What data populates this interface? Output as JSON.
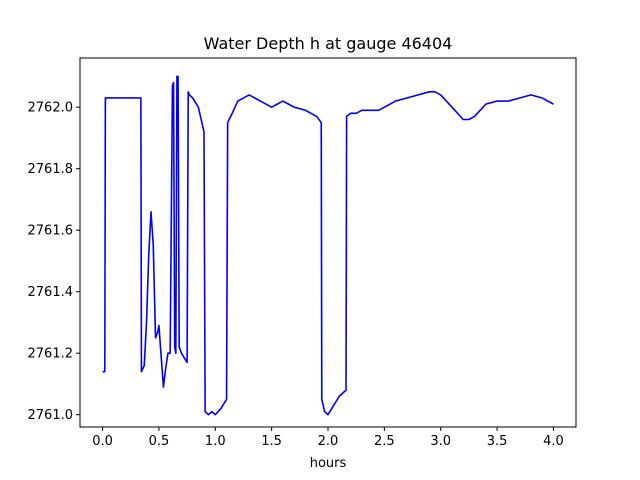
{
  "chart_data": {
    "type": "line",
    "title": "Water Depth h at gauge 46404",
    "xlabel": "hours",
    "ylabel": "",
    "xlim": [
      -0.2,
      4.2
    ],
    "ylim": [
      2760.96,
      2762.16
    ],
    "xticks": [
      0.0,
      0.5,
      1.0,
      1.5,
      2.0,
      2.5,
      3.0,
      3.5,
      4.0
    ],
    "xtick_labels": [
      "0.0",
      "0.5",
      "1.0",
      "1.5",
      "2.0",
      "2.5",
      "3.0",
      "3.5",
      "4.0"
    ],
    "yticks": [
      2761.0,
      2761.2,
      2761.4,
      2761.6,
      2761.8,
      2762.0
    ],
    "ytick_labels": [
      "2761.0",
      "2761.2",
      "2761.4",
      "2761.6",
      "2761.8",
      "2762.0"
    ],
    "grid": false,
    "series": [
      {
        "color": "#0000ff",
        "x": [
          0.0,
          0.02,
          0.025,
          0.05,
          0.1,
          0.2,
          0.3,
          0.34,
          0.345,
          0.37,
          0.39,
          0.41,
          0.43,
          0.45,
          0.47,
          0.49,
          0.5,
          0.52,
          0.54,
          0.56,
          0.58,
          0.6,
          0.62,
          0.63,
          0.64,
          0.65,
          0.66,
          0.67,
          0.68,
          0.69,
          0.7,
          0.75,
          0.76,
          0.77,
          0.8,
          0.85,
          0.9,
          0.91,
          0.94,
          0.97,
          1.0,
          1.05,
          1.1,
          1.11,
          1.15,
          1.2,
          1.3,
          1.4,
          1.5,
          1.55,
          1.6,
          1.65,
          1.7,
          1.8,
          1.9,
          1.94,
          1.945,
          1.97,
          2.0,
          2.05,
          2.1,
          2.16,
          2.165,
          2.2,
          2.25,
          2.3,
          2.35,
          2.4,
          2.45,
          2.5,
          2.6,
          2.7,
          2.8,
          2.9,
          2.95,
          3.0,
          3.1,
          3.2,
          3.25,
          3.3,
          3.35,
          3.4,
          3.5,
          3.6,
          3.7,
          3.8,
          3.9,
          4.0
        ],
        "y": [
          2761.14,
          2761.14,
          2762.03,
          2762.03,
          2762.03,
          2762.03,
          2762.03,
          2762.03,
          2761.14,
          2761.16,
          2761.3,
          2761.52,
          2761.66,
          2761.55,
          2761.25,
          2761.27,
          2761.29,
          2761.19,
          2761.09,
          2761.15,
          2761.2,
          2761.2,
          2762.07,
          2762.08,
          2761.22,
          2761.2,
          2762.1,
          2762.1,
          2761.22,
          2761.21,
          2761.2,
          2761.17,
          2762.05,
          2762.04,
          2762.03,
          2762.0,
          2761.92,
          2761.01,
          2761.0,
          2761.01,
          2761.0,
          2761.02,
          2761.05,
          2761.95,
          2761.98,
          2762.02,
          2762.04,
          2762.02,
          2762.0,
          2762.01,
          2762.02,
          2762.01,
          2762.0,
          2761.99,
          2761.97,
          2761.95,
          2761.05,
          2761.01,
          2761.0,
          2761.03,
          2761.06,
          2761.08,
          2761.97,
          2761.98,
          2761.98,
          2761.99,
          2761.99,
          2761.99,
          2761.99,
          2762.0,
          2762.02,
          2762.03,
          2762.04,
          2762.05,
          2762.05,
          2762.04,
          2762.0,
          2761.96,
          2761.96,
          2761.97,
          2761.99,
          2762.01,
          2762.02,
          2762.02,
          2762.03,
          2762.04,
          2762.03,
          2762.01
        ]
      }
    ]
  }
}
